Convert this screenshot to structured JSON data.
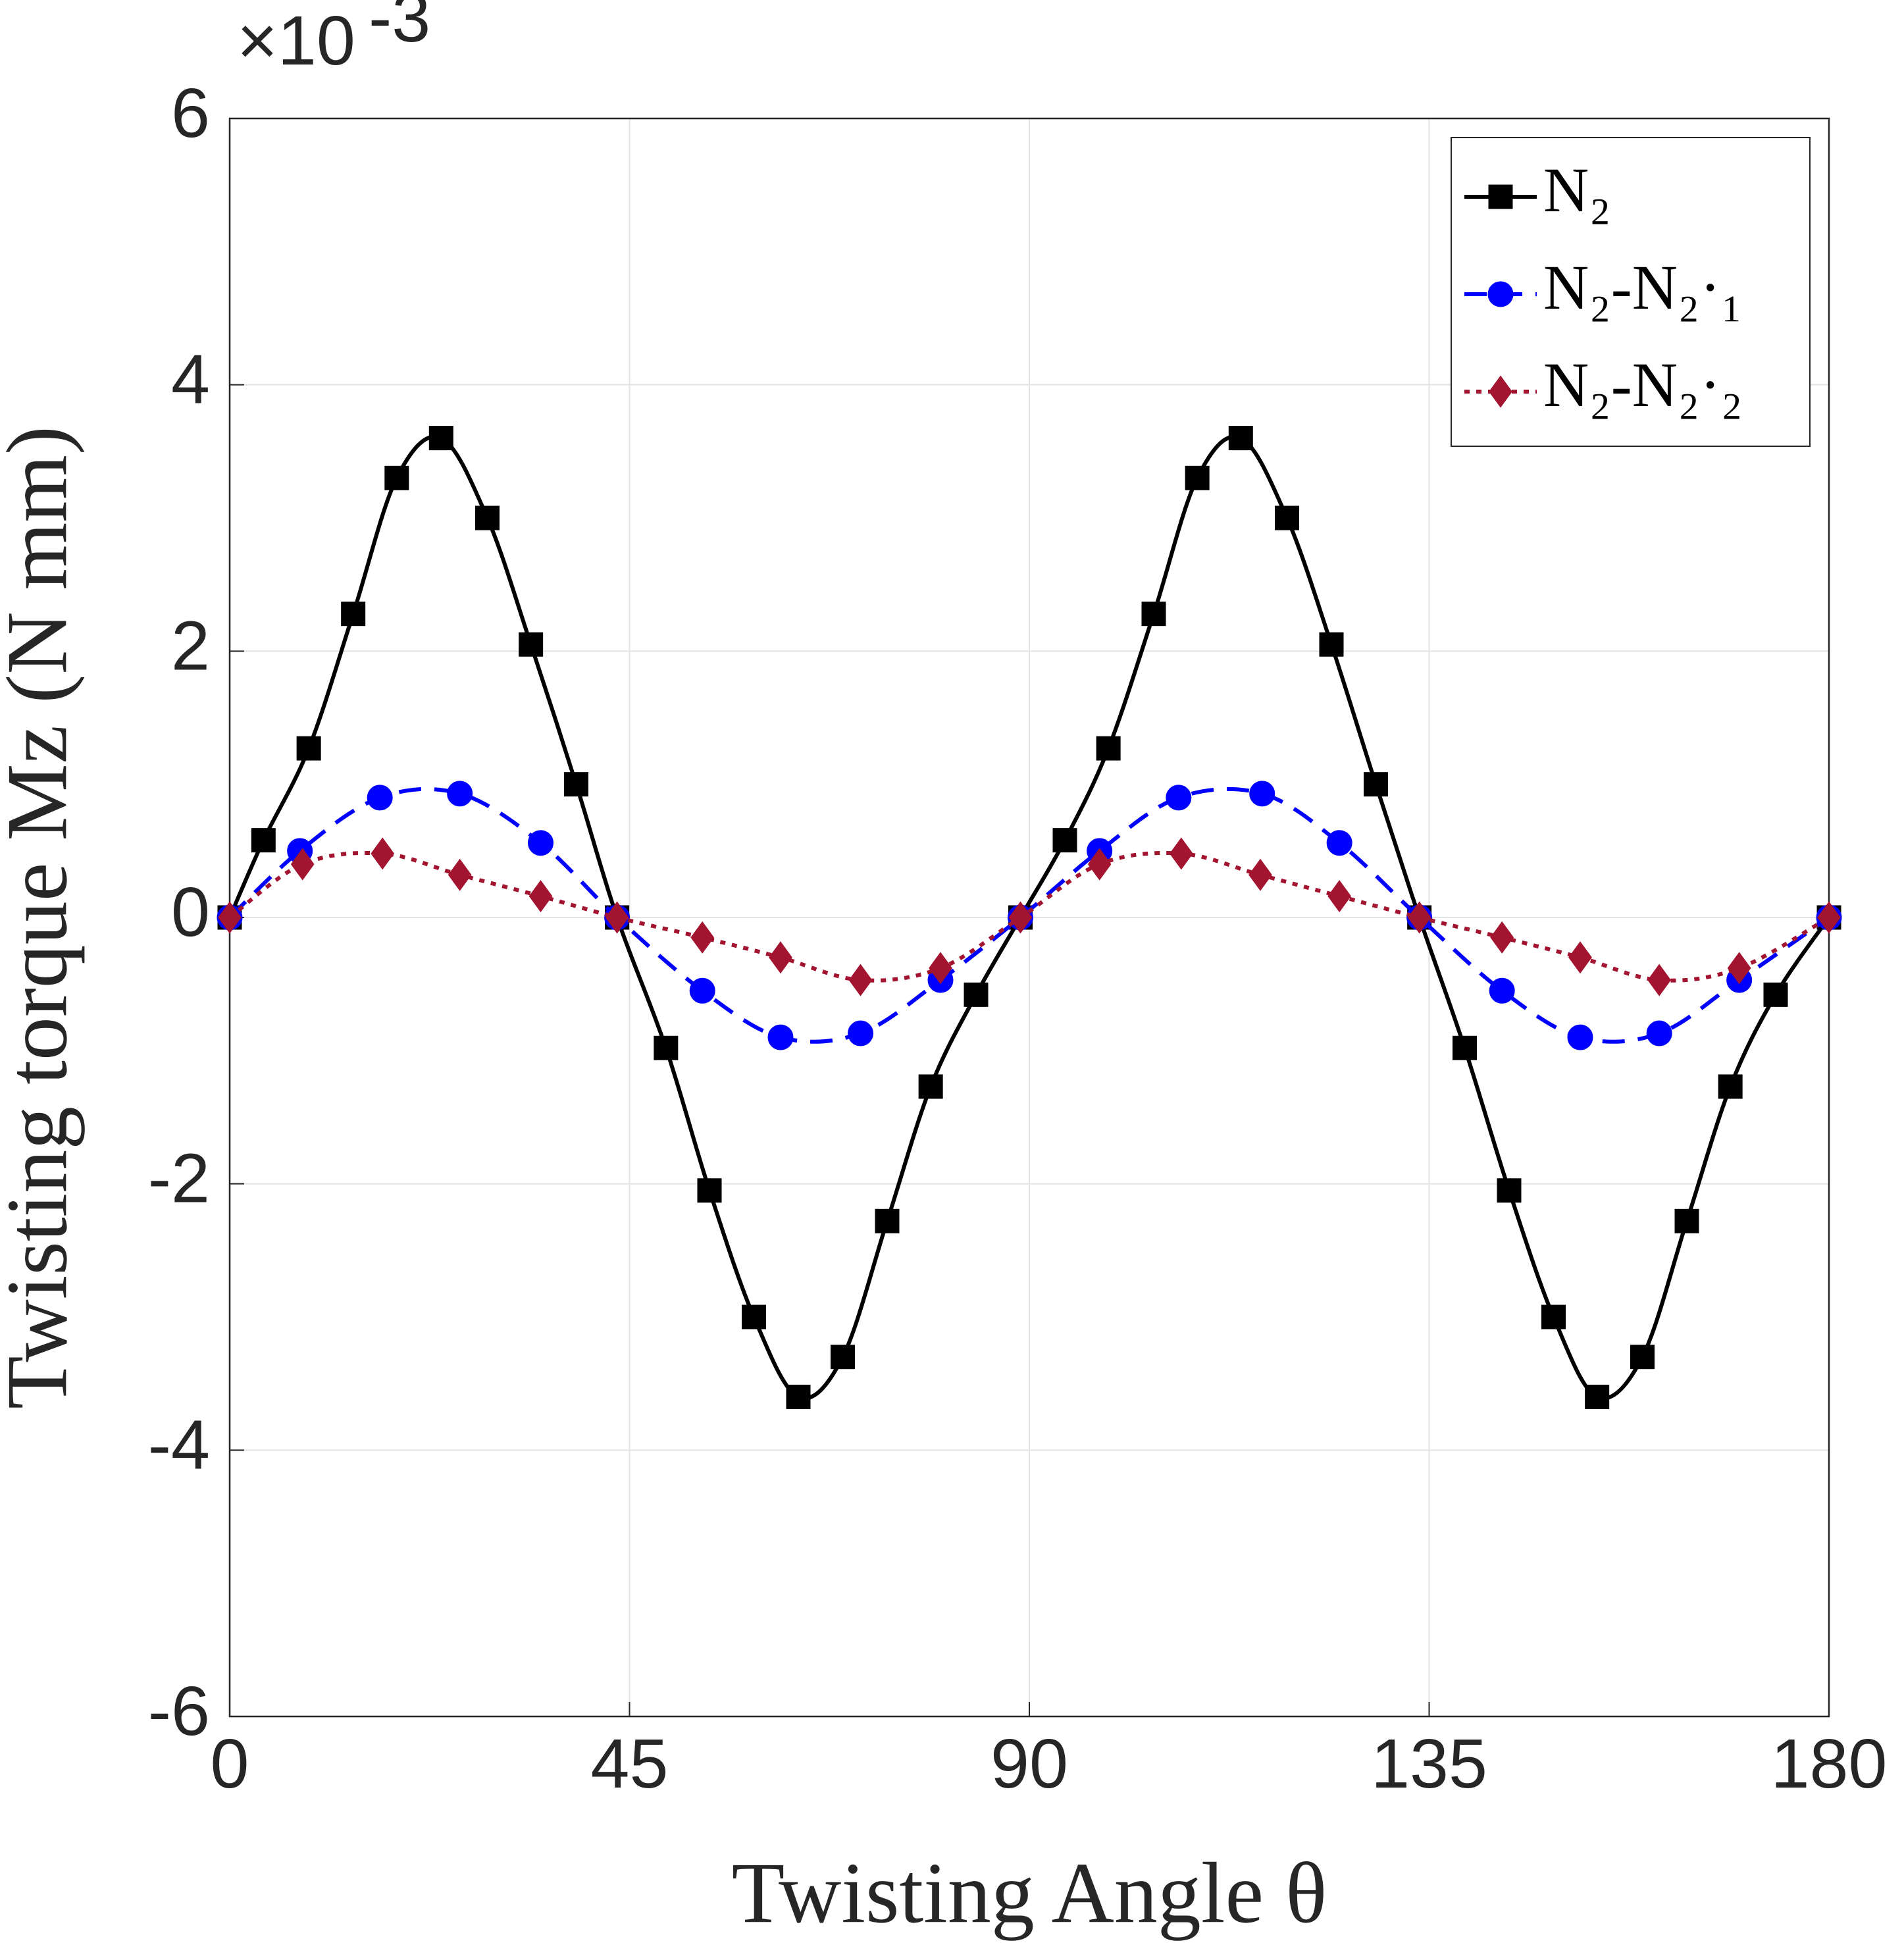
{
  "chart_data": {
    "type": "line",
    "xlabel": "Twisting Angle θ",
    "ylabel": "Twisting torque Mz (N mm)",
    "y_scale_base": "×10",
    "y_scale_exponent": "-3",
    "xlim": [
      0,
      180
    ],
    "xticks": [
      0,
      45,
      90,
      135,
      180
    ],
    "ylim": [
      -6,
      6
    ],
    "yticks": [
      -6,
      -4,
      -2,
      0,
      2,
      4,
      6
    ],
    "grid": true,
    "legend": "upper right",
    "series": [
      {
        "name": "N₂",
        "color": "#000000",
        "line": "solid",
        "marker": "square",
        "x": [
          0,
          3.8,
          8.9,
          13.9,
          18.8,
          23.8,
          29,
          33.9,
          39,
          43.6,
          49.1,
          54,
          59,
          64,
          69,
          74,
          78.9,
          84,
          89,
          94,
          98.9,
          104,
          108.9,
          113.8,
          119,
          124,
          129,
          133.9,
          139,
          144,
          149,
          153.9,
          159,
          164,
          168.9,
          174,
          180
        ],
        "values": [
          0,
          0.58,
          1.27,
          2.28,
          3.3,
          3.6,
          3.0,
          2.05,
          1.0,
          0,
          -0.98,
          -2.05,
          -3.0,
          -3.6,
          -3.3,
          -2.28,
          -1.27,
          -0.58,
          0,
          0.58,
          1.27,
          2.28,
          3.3,
          3.6,
          3.0,
          2.05,
          1.0,
          0,
          -0.98,
          -2.05,
          -3.0,
          -3.6,
          -3.3,
          -2.28,
          -1.27,
          -0.58,
          0
        ]
      },
      {
        "name": "N₂-N₂·₁",
        "color": "#0000ff",
        "line": "dashed",
        "marker": "circle",
        "x": [
          0,
          7.9,
          16.9,
          25.9,
          35,
          43.6,
          53.2,
          62,
          71,
          80,
          89,
          97.9,
          106.8,
          116.2,
          124.9,
          133.9,
          143.2,
          152,
          160.9,
          169.9,
          180
        ],
        "values": [
          0,
          0.5,
          0.9,
          0.93,
          0.56,
          0,
          -0.55,
          -0.9,
          -0.87,
          -0.47,
          0,
          0.5,
          0.9,
          0.93,
          0.56,
          0,
          -0.55,
          -0.9,
          -0.87,
          -0.47,
          0
        ]
      },
      {
        "name": "N₂-N₂·₂",
        "color": "#a2142f",
        "line": "dotted",
        "marker": "diamond",
        "x": [
          0,
          8.2,
          17.2,
          25.9,
          35,
          43.6,
          53.2,
          62,
          71,
          80,
          89,
          97.9,
          107.1,
          116,
          124.9,
          133.9,
          143.2,
          152,
          160.9,
          169.9,
          180
        ],
        "values": [
          0,
          0.4,
          0.48,
          0.32,
          0.16,
          0,
          -0.15,
          -0.3,
          -0.47,
          -0.38,
          0,
          0.4,
          0.48,
          0.32,
          0.16,
          0,
          -0.15,
          -0.3,
          -0.47,
          -0.38,
          0
        ]
      }
    ]
  }
}
